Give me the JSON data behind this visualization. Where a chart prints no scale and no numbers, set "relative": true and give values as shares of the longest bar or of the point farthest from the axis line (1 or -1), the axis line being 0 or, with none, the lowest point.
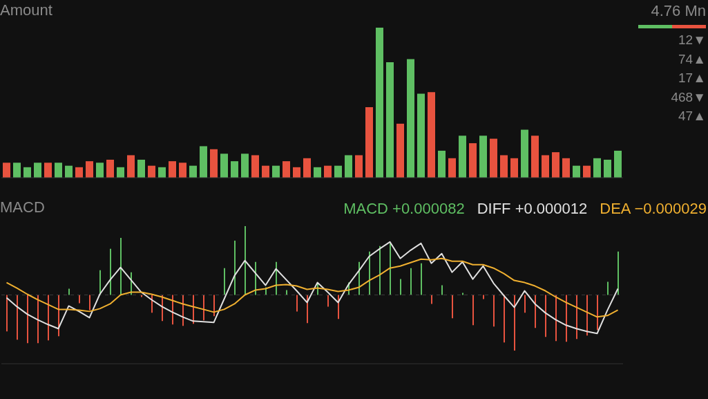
{
  "chart_data": [
    {
      "type": "bar",
      "title": "Amount",
      "relative": true,
      "categories": [
        null,
        null,
        null,
        null,
        null,
        null,
        null,
        null,
        null,
        null,
        null,
        null,
        null,
        null,
        null,
        null,
        null,
        null,
        null,
        null,
        null,
        null,
        null,
        null,
        null,
        null,
        null,
        null,
        null,
        null,
        null,
        null,
        null,
        null,
        null,
        null,
        null,
        null,
        null,
        null,
        null,
        null,
        null,
        null,
        null,
        null,
        null,
        null,
        null,
        null,
        null,
        null,
        null,
        null,
        null,
        null,
        null,
        null,
        null,
        null
      ],
      "series": [
        {
          "values": [
            0.1,
            0.1,
            0.07,
            0.1,
            0.1,
            0.1,
            0.08,
            0.07,
            0.11,
            0.1,
            0.12,
            0.07,
            0.15,
            0.12,
            0.08,
            0.07,
            0.11,
            0.1,
            0.08,
            0.21,
            0.19,
            0.16,
            0.11,
            0.16,
            0.15,
            0.08,
            0.08,
            0.11,
            0.07,
            0.13,
            0.07,
            0.08,
            0.08,
            0.15,
            0.15,
            0.47,
            1,
            0.77,
            0.36,
            0.79,
            0.56,
            0.57,
            0.18,
            0.13,
            0.28,
            0.23,
            0.28,
            0.26,
            0.15,
            0.13,
            0.32,
            0.28,
            0.15,
            0.17,
            0.13,
            0.08,
            0.08,
            0.13,
            0.12,
            0.18
          ],
          "colors": [
            "#e8533f",
            "#5fbf63",
            "#5fbf63",
            "#5fbf63",
            "#e8533f",
            "#5fbf63",
            "#5fbf63",
            "#e8533f",
            "#e8533f",
            "#5fbf63",
            "#e8533f",
            "#5fbf63",
            "#e8533f",
            "#5fbf63",
            "#e8533f",
            "#5fbf63",
            "#e8533f",
            "#e8533f",
            "#5fbf63",
            "#5fbf63",
            "#e8533f",
            "#5fbf63",
            "#5fbf63",
            "#5fbf63",
            "#e8533f",
            "#e8533f",
            "#5fbf63",
            "#e8533f",
            "#e8533f",
            "#e8533f",
            "#5fbf63",
            "#e8533f",
            "#5fbf63",
            "#5fbf63",
            "#e8533f",
            "#e8533f",
            "#5fbf63",
            "#5fbf63",
            "#e8533f",
            "#5fbf63",
            "#5fbf63",
            "#e8533f",
            "#5fbf63",
            "#e8533f",
            "#5fbf63",
            "#e8533f",
            "#5fbf63",
            "#e8533f",
            "#e8533f",
            "#e8533f",
            "#5fbf63",
            "#e8533f",
            "#e8533f",
            "#e8533f",
            "#e8533f",
            "#5fbf63",
            "#e8533f",
            "#5fbf63",
            "#5fbf63",
            "#5fbf63"
          ]
        }
      ],
      "annotations": [
        "4.76 Mn",
        "12▼",
        "74▲",
        "17▲",
        "468▼",
        "47▲"
      ]
    },
    {
      "type": "bar",
      "title": "MACD",
      "relative": true,
      "legend": "top right",
      "marker": "none",
      "categories": [
        null,
        null,
        null,
        null,
        null,
        null,
        null,
        null,
        null,
        null,
        null,
        null,
        null,
        null,
        null,
        null,
        null,
        null,
        null,
        null,
        null,
        null,
        null,
        null,
        null,
        null,
        null,
        null,
        null,
        null,
        null,
        null,
        null,
        null,
        null,
        null,
        null,
        null,
        null,
        null,
        null,
        null,
        null,
        null,
        null,
        null,
        null,
        null,
        null,
        null,
        null,
        null,
        null,
        null,
        null,
        null,
        null,
        null,
        null,
        null
      ],
      "series": [
        {
          "name": "MACD +0.000082",
          "color": "#5fbf63",
          "values": [
            -0.53,
            -0.65,
            -0.7,
            -0.7,
            -0.66,
            -0.6,
            0.09,
            -0.12,
            -0.22,
            0.36,
            0.67,
            0.83,
            0.33,
            -0.03,
            -0.26,
            -0.38,
            -0.43,
            -0.45,
            -0.42,
            -0.37,
            -0.31,
            0.39,
            0.79,
            1,
            0.48,
            0.11,
            0.48,
            0.07,
            -0.24,
            -0.41,
            0.18,
            -0.17,
            -0.35,
            0.18,
            0.48,
            0.63,
            0.71,
            0.75,
            0.23,
            0.39,
            0.46,
            -0.13,
            0.14,
            -0.34,
            0.03,
            -0.44,
            -0.06,
            -0.46,
            -0.69,
            -0.81,
            -0.26,
            -0.48,
            -0.61,
            -0.67,
            -0.68,
            -0.64,
            -0.59,
            -0.51,
            0.19,
            0.63
          ],
          "colors": [
            "#e8533f",
            "#e8533f",
            "#e8533f",
            "#e8533f",
            "#e8533f",
            "#e8533f",
            "#5fbf63",
            "#e8533f",
            "#e8533f",
            "#5fbf63",
            "#5fbf63",
            "#5fbf63",
            "#5fbf63",
            "#e8533f",
            "#e8533f",
            "#e8533f",
            "#e8533f",
            "#e8533f",
            "#e8533f",
            "#e8533f",
            "#e8533f",
            "#5fbf63",
            "#5fbf63",
            "#5fbf63",
            "#5fbf63",
            "#5fbf63",
            "#5fbf63",
            "#5fbf63",
            "#e8533f",
            "#e8533f",
            "#5fbf63",
            "#e8533f",
            "#e8533f",
            "#5fbf63",
            "#5fbf63",
            "#5fbf63",
            "#5fbf63",
            "#5fbf63",
            "#5fbf63",
            "#5fbf63",
            "#5fbf63",
            "#e8533f",
            "#5fbf63",
            "#e8533f",
            "#5fbf63",
            "#e8533f",
            "#e8533f",
            "#e8533f",
            "#e8533f",
            "#e8533f",
            "#e8533f",
            "#e8533f",
            "#e8533f",
            "#e8533f",
            "#e8533f",
            "#e8533f",
            "#e8533f",
            "#e8533f",
            "#5fbf63",
            "#5fbf63"
          ]
        },
        {
          "name": "DIFF +0.000012",
          "type": "line",
          "color": "#e0e0e0",
          "values": [
            -0.04,
            -0.17,
            -0.28,
            -0.36,
            -0.43,
            -0.49,
            -0.16,
            -0.24,
            -0.33,
            0.01,
            0.22,
            0.4,
            0.22,
            0.04,
            -0.07,
            -0.17,
            -0.25,
            -0.32,
            -0.38,
            -0.39,
            -0.4,
            -0.06,
            0.28,
            0.5,
            0.32,
            0.14,
            0.38,
            0.22,
            0.06,
            -0.11,
            0.18,
            0.04,
            -0.11,
            0.15,
            0.35,
            0.56,
            0.67,
            0.77,
            0.53,
            0.65,
            0.75,
            0.46,
            0.6,
            0.33,
            0.48,
            0.23,
            0.42,
            0.17,
            -0.01,
            -0.18,
            0.06,
            -0.13,
            -0.26,
            -0.36,
            -0.44,
            -0.49,
            -0.53,
            -0.56,
            -0.22,
            0.09
          ]
        },
        {
          "name": "DEA −0.000029",
          "type": "line",
          "color": "#f0b030",
          "values": [
            0.18,
            0.1,
            0.01,
            -0.07,
            -0.14,
            -0.21,
            -0.21,
            -0.22,
            -0.24,
            -0.2,
            -0.13,
            0,
            0.04,
            0.04,
            0.01,
            -0.03,
            -0.08,
            -0.13,
            -0.17,
            -0.21,
            -0.25,
            -0.21,
            -0.13,
            0,
            0.07,
            0.09,
            0.14,
            0.15,
            0.13,
            0.08,
            0.1,
            0.08,
            0.05,
            0.07,
            0.11,
            0.21,
            0.29,
            0.39,
            0.42,
            0.47,
            0.52,
            0.51,
            0.53,
            0.49,
            0.49,
            0.44,
            0.44,
            0.39,
            0.31,
            0.21,
            0.18,
            0.13,
            0.06,
            -0.03,
            -0.11,
            -0.18,
            -0.25,
            -0.32,
            -0.3,
            -0.22
          ]
        }
      ],
      "ref_lines": [
        {
          "axis": "y",
          "value": 0,
          "color": "#3a3a3a",
          "line_style": "dashed"
        }
      ]
    }
  ]
}
